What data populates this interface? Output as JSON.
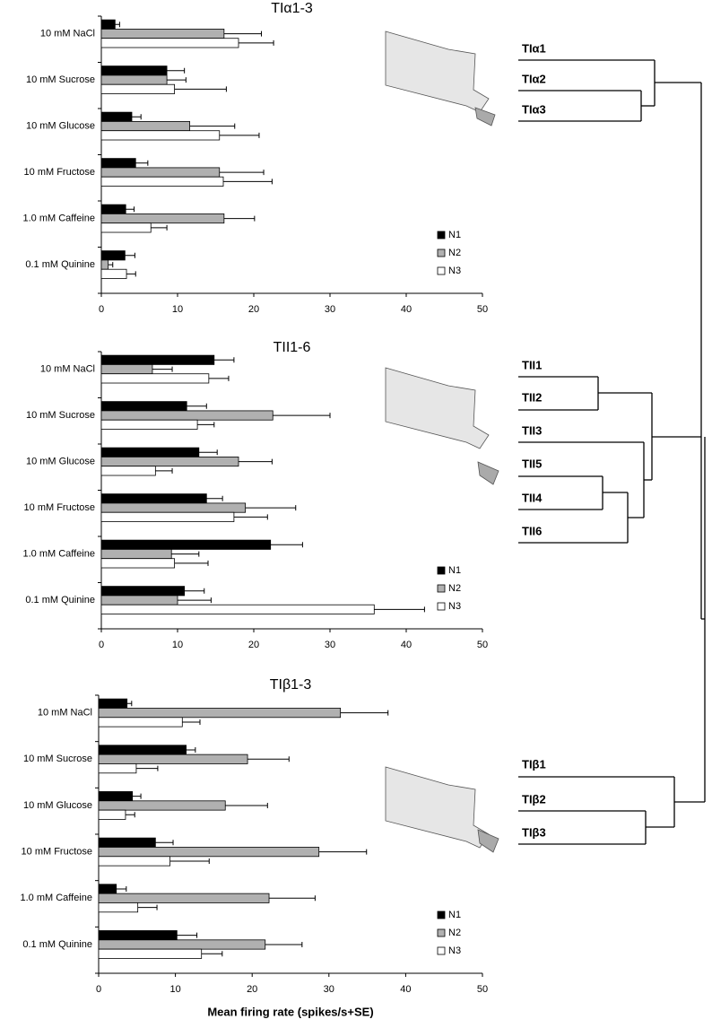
{
  "chart_data": [
    {
      "type": "hbar",
      "title": "TIα1-3",
      "categories": [
        "10 mM NaCl",
        "10 mM Sucrose",
        "10 mM Glucose",
        "10 mM Fructose",
        "1.0 mM Caffeine",
        "0.1 mM Quinine"
      ],
      "series": [
        {
          "name": "N1",
          "color": "#000000",
          "values": [
            1.8,
            8.6,
            4.0,
            4.5,
            3.2,
            3.1
          ],
          "errors": [
            0.6,
            2.3,
            1.2,
            1.6,
            1.1,
            1.3
          ]
        },
        {
          "name": "N2",
          "color": "#b0b0b0",
          "values": [
            16.1,
            8.6,
            11.6,
            15.5,
            16.1,
            0.9
          ],
          "errors": [
            4.9,
            2.5,
            5.9,
            5.8,
            4.0,
            0.6
          ]
        },
        {
          "name": "N3",
          "color": "#ffffff",
          "values": [
            18.0,
            9.6,
            15.5,
            16.0,
            6.5,
            3.3
          ],
          "errors": [
            4.6,
            6.8,
            5.2,
            6.4,
            2.1,
            1.2
          ]
        }
      ],
      "xlim": [
        0,
        50
      ],
      "xticks": [
        0,
        10,
        20,
        30,
        40,
        50
      ],
      "legend": "lower right"
    },
    {
      "type": "hbar",
      "title": "TII1-6",
      "categories": [
        "10 mM NaCl",
        "10 mM Sucrose",
        "10 mM Glucose",
        "10 mM Fructose",
        "1.0 mM Caffeine",
        "0.1 mM Quinine"
      ],
      "series": [
        {
          "name": "N1",
          "color": "#000000",
          "values": [
            14.8,
            11.2,
            12.8,
            13.8,
            22.2,
            10.9
          ],
          "errors": [
            2.6,
            2.6,
            2.4,
            2.1,
            4.2,
            2.6
          ]
        },
        {
          "name": "N2",
          "color": "#b0b0b0",
          "values": [
            6.7,
            22.5,
            18.0,
            18.9,
            9.2,
            10.0
          ],
          "errors": [
            2.6,
            7.5,
            4.4,
            6.6,
            3.6,
            4.4
          ]
        },
        {
          "name": "N3",
          "color": "#ffffff",
          "values": [
            14.1,
            12.6,
            7.1,
            17.4,
            9.6,
            35.8
          ],
          "errors": [
            2.6,
            2.2,
            2.2,
            4.4,
            4.4,
            6.6
          ]
        }
      ],
      "xlim": [
        0,
        50
      ],
      "xticks": [
        0,
        10,
        20,
        30,
        40,
        50
      ],
      "legend": "lower right"
    },
    {
      "type": "hbar",
      "title": "TIβ1-3",
      "x_label": "Mean firing rate (spikes/s+SE)",
      "categories": [
        "10 mM NaCl",
        "10 mM Sucrose",
        "10 mM Glucose",
        "10 mM Fructose",
        "1.0 mM Caffeine",
        "0.1 mM Quinine"
      ],
      "series": [
        {
          "name": "N1",
          "color": "#000000",
          "values": [
            3.7,
            11.4,
            4.4,
            7.4,
            2.3,
            10.2
          ],
          "errors": [
            0.6,
            1.2,
            1.1,
            2.3,
            1.3,
            2.6
          ]
        },
        {
          "name": "N2",
          "color": "#b0b0b0",
          "values": [
            31.5,
            19.4,
            16.5,
            28.7,
            22.2,
            21.7
          ],
          "errors": [
            6.2,
            5.4,
            5.5,
            6.2,
            6.0,
            4.8
          ]
        },
        {
          "name": "N3",
          "color": "#ffffff",
          "values": [
            10.9,
            4.9,
            3.5,
            9.3,
            5.1,
            13.4
          ],
          "errors": [
            2.3,
            2.8,
            1.2,
            5.1,
            2.5,
            2.7
          ]
        }
      ],
      "xlim": [
        0,
        50
      ],
      "xticks": [
        0,
        10,
        20,
        30,
        40,
        50
      ],
      "legend": "lower right"
    }
  ],
  "dendrogram": {
    "leaves": [
      "TIα1",
      "TIα2",
      "TIα3",
      "TII1",
      "TII2",
      "TII3",
      "TII5",
      "TII4",
      "TII6",
      "TIβ1",
      "TIβ2",
      "TIβ3"
    ]
  }
}
